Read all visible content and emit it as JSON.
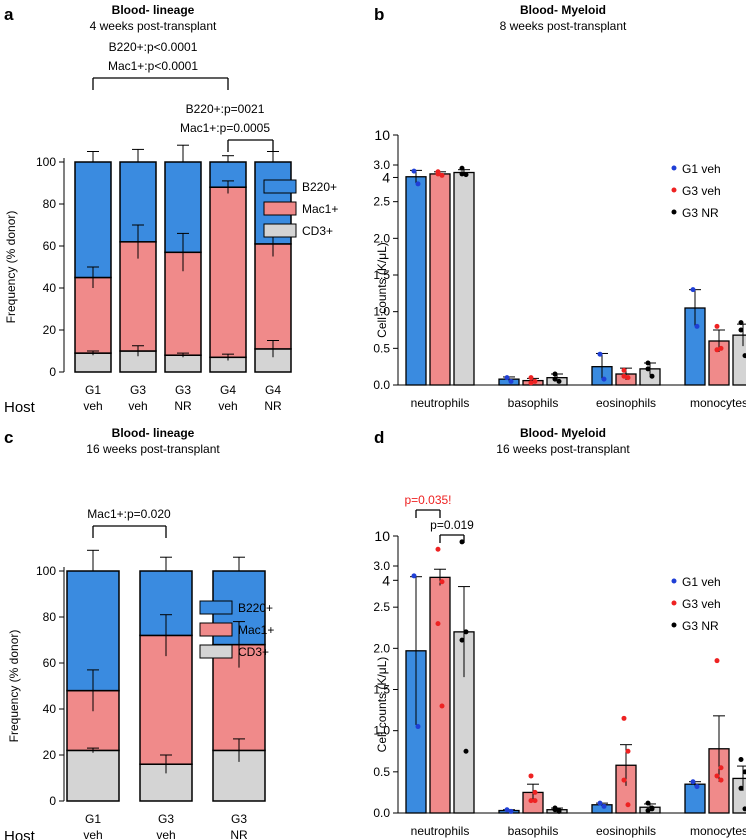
{
  "colors": {
    "blue": "#3a8be0",
    "red": "#f08a8a",
    "gray": "#d4d4d4",
    "dot_blue": "#1f3fd6",
    "dot_red": "#ee2222",
    "dot_black": "#000000",
    "sig_red": "#ee2222"
  },
  "chart_data": [
    {
      "id": "a",
      "panel_letter": "a",
      "type": "bar",
      "stacked": true,
      "title": "Blood- lineage",
      "subtitle": "4 weeks post-transplant",
      "ylabel": "Frequency (% donor)",
      "ylim": [
        0,
        100
      ],
      "yticks": [
        "0",
        "20",
        "40",
        "60",
        "80",
        "100"
      ],
      "host_label": "Host",
      "categories": [
        [
          "G1",
          "veh"
        ],
        [
          "G3",
          "veh"
        ],
        [
          "G3",
          "NR"
        ],
        [
          "G4",
          "veh"
        ],
        [
          "G4",
          "NR"
        ]
      ],
      "series": [
        {
          "name": "CD3+",
          "values": [
            9,
            10,
            8,
            7,
            11
          ],
          "errors": [
            1,
            2.5,
            1,
            1.5,
            4
          ]
        },
        {
          "name": "Mac1+",
          "values": [
            36,
            52,
            49,
            81,
            50
          ],
          "errors": [
            5,
            8,
            9,
            3,
            6
          ]
        },
        {
          "name": "B220+",
          "values": [
            55,
            38,
            43,
            12,
            39
          ],
          "errors": [
            5,
            6,
            8,
            3,
            5
          ]
        }
      ],
      "legend": [
        "B220+",
        "Mac1+",
        "CD3+"
      ],
      "annotations": [
        {
          "lines": [
            "B220+:p<0.0001",
            "Mac1+:p<0.0001"
          ],
          "from": 0,
          "to": 3
        },
        {
          "lines": [
            "B220+:p=0021",
            "Mac1+:p=0.0005"
          ],
          "from": 3,
          "to": 4
        }
      ]
    },
    {
      "id": "b",
      "panel_letter": "b",
      "type": "bar",
      "broken_axis": true,
      "title": "Blood- Myeloid",
      "subtitle": "8 weeks post-transplant",
      "ylabel": "Cell counts (K/μL)",
      "ylim_lower": [
        0,
        3.0
      ],
      "ylim_upper": [
        3.5,
        10
      ],
      "yticks_lower": [
        "0.0",
        "0.5",
        "1.0",
        "1.5",
        "2.0",
        "2.5",
        "3.0"
      ],
      "yticks_upper": [
        "4",
        "10"
      ],
      "categories": [
        "neutrophils",
        "basophils",
        "eosinophils",
        "monocytes"
      ],
      "series": [
        {
          "name": "G1 veh",
          "values": [
            4.1,
            0.08,
            0.25,
            1.05
          ],
          "errors": [
            0.9,
            0.03,
            0.18,
            0.25
          ],
          "points": [
            [
              4.9,
              3.1
            ],
            [
              0.1,
              0.05
            ],
            [
              0.42,
              0.08
            ],
            [
              1.3,
              0.8
            ]
          ]
        },
        {
          "name": "G3 veh",
          "values": [
            4.5,
            0.06,
            0.15,
            0.6
          ],
          "errors": [
            0.3,
            0.03,
            0.08,
            0.15
          ],
          "points": [
            [
              4.8,
              4.3,
              4.5
            ],
            [
              0.1,
              0.05,
              0.03
            ],
            [
              0.2,
              0.1,
              0.12
            ],
            [
              0.8,
              0.5,
              0.48
            ]
          ]
        },
        {
          "name": "G3 NR",
          "values": [
            4.7,
            0.1,
            0.22,
            0.68
          ],
          "errors": [
            0.4,
            0.05,
            0.08,
            0.15
          ],
          "points": [
            [
              5.3,
              4.4,
              4.5
            ],
            [
              0.15,
              0.05,
              0.08
            ],
            [
              0.3,
              0.12,
              0.22
            ],
            [
              0.85,
              0.4,
              0.75
            ]
          ]
        }
      ],
      "annotations": []
    },
    {
      "id": "c",
      "panel_letter": "c",
      "type": "bar",
      "stacked": true,
      "title": "Blood- lineage",
      "subtitle": "16 weeks post-transplant",
      "ylabel": "Frequency (% donor)",
      "ylim": [
        0,
        100
      ],
      "yticks": [
        "0",
        "20",
        "40",
        "60",
        "80",
        "100"
      ],
      "host_label": "Host",
      "categories": [
        [
          "G1",
          "veh"
        ],
        [
          "G3",
          "veh"
        ],
        [
          "G3",
          "NR"
        ]
      ],
      "series": [
        {
          "name": "CD3+",
          "values": [
            22,
            16,
            22
          ],
          "errors": [
            1,
            4,
            5
          ]
        },
        {
          "name": "Mac1+",
          "values": [
            26,
            56,
            46
          ],
          "errors": [
            9,
            9,
            10
          ]
        },
        {
          "name": "B220+",
          "values": [
            52,
            28,
            32
          ],
          "errors": [
            9,
            6,
            6
          ]
        }
      ],
      "legend": [
        "B220+",
        "Mac1+",
        "CD3+"
      ],
      "annotations": [
        {
          "lines": [
            "Mac1+:p=0.020"
          ],
          "from": 0,
          "to": 1
        }
      ]
    },
    {
      "id": "d",
      "panel_letter": "d",
      "type": "bar",
      "broken_axis": true,
      "title": "Blood- Myeloid",
      "subtitle": "16 weeks post-transplant",
      "ylabel": "Cell counts (K/μL)",
      "ylim_lower": [
        0,
        3.0
      ],
      "ylim_upper": [
        3.5,
        10
      ],
      "yticks_lower": [
        "0.0",
        "0.5",
        "1.0",
        "1.5",
        "2.0",
        "2.5",
        "3.0"
      ],
      "yticks_upper": [
        "4",
        "10"
      ],
      "categories": [
        "neutrophils",
        "basophils",
        "eosinophils",
        "monocytes"
      ],
      "series": [
        {
          "name": "G1 veh",
          "values": [
            1.97,
            0.03,
            0.1,
            0.35
          ],
          "errors": [
            0.9,
            0.01,
            0.02,
            0.03
          ],
          "points": [
            [
              2.88,
              1.05
            ],
            [
              0.04,
              0.02
            ],
            [
              0.12,
              0.08
            ],
            [
              0.38,
              0.32
            ]
          ]
        },
        {
          "name": "G3 veh",
          "values": [
            4.4,
            0.25,
            0.58,
            0.78
          ],
          "errors": [
            1.1,
            0.1,
            0.25,
            0.4
          ],
          "points": [
            [
              8.2,
              3.8,
              2.3,
              1.3
            ],
            [
              0.45,
              0.25,
              0.15,
              0.15
            ],
            [
              1.15,
              0.75,
              0.4,
              0.1
            ],
            [
              1.85,
              0.55,
              0.45,
              0.4
            ]
          ]
        },
        {
          "name": "G3 NR",
          "values": [
            2.2,
            0.04,
            0.07,
            0.42
          ],
          "errors": [
            0.55,
            0.02,
            0.04,
            0.15
          ],
          "points": [
            [
              9.2,
              2.2,
              2.1,
              0.75
            ],
            [
              0.06,
              0.02,
              0.04,
              0.03
            ],
            [
              0.12,
              0.06,
              0.03,
              0.05
            ],
            [
              0.65,
              0.5,
              0.3,
              0.05
            ]
          ]
        }
      ],
      "annotations": [
        {
          "text": "p=0.035!",
          "red": true,
          "from": 0,
          "to": 1
        },
        {
          "text": "p=0.019",
          "red": false,
          "from": 1,
          "to": 2
        }
      ]
    }
  ]
}
